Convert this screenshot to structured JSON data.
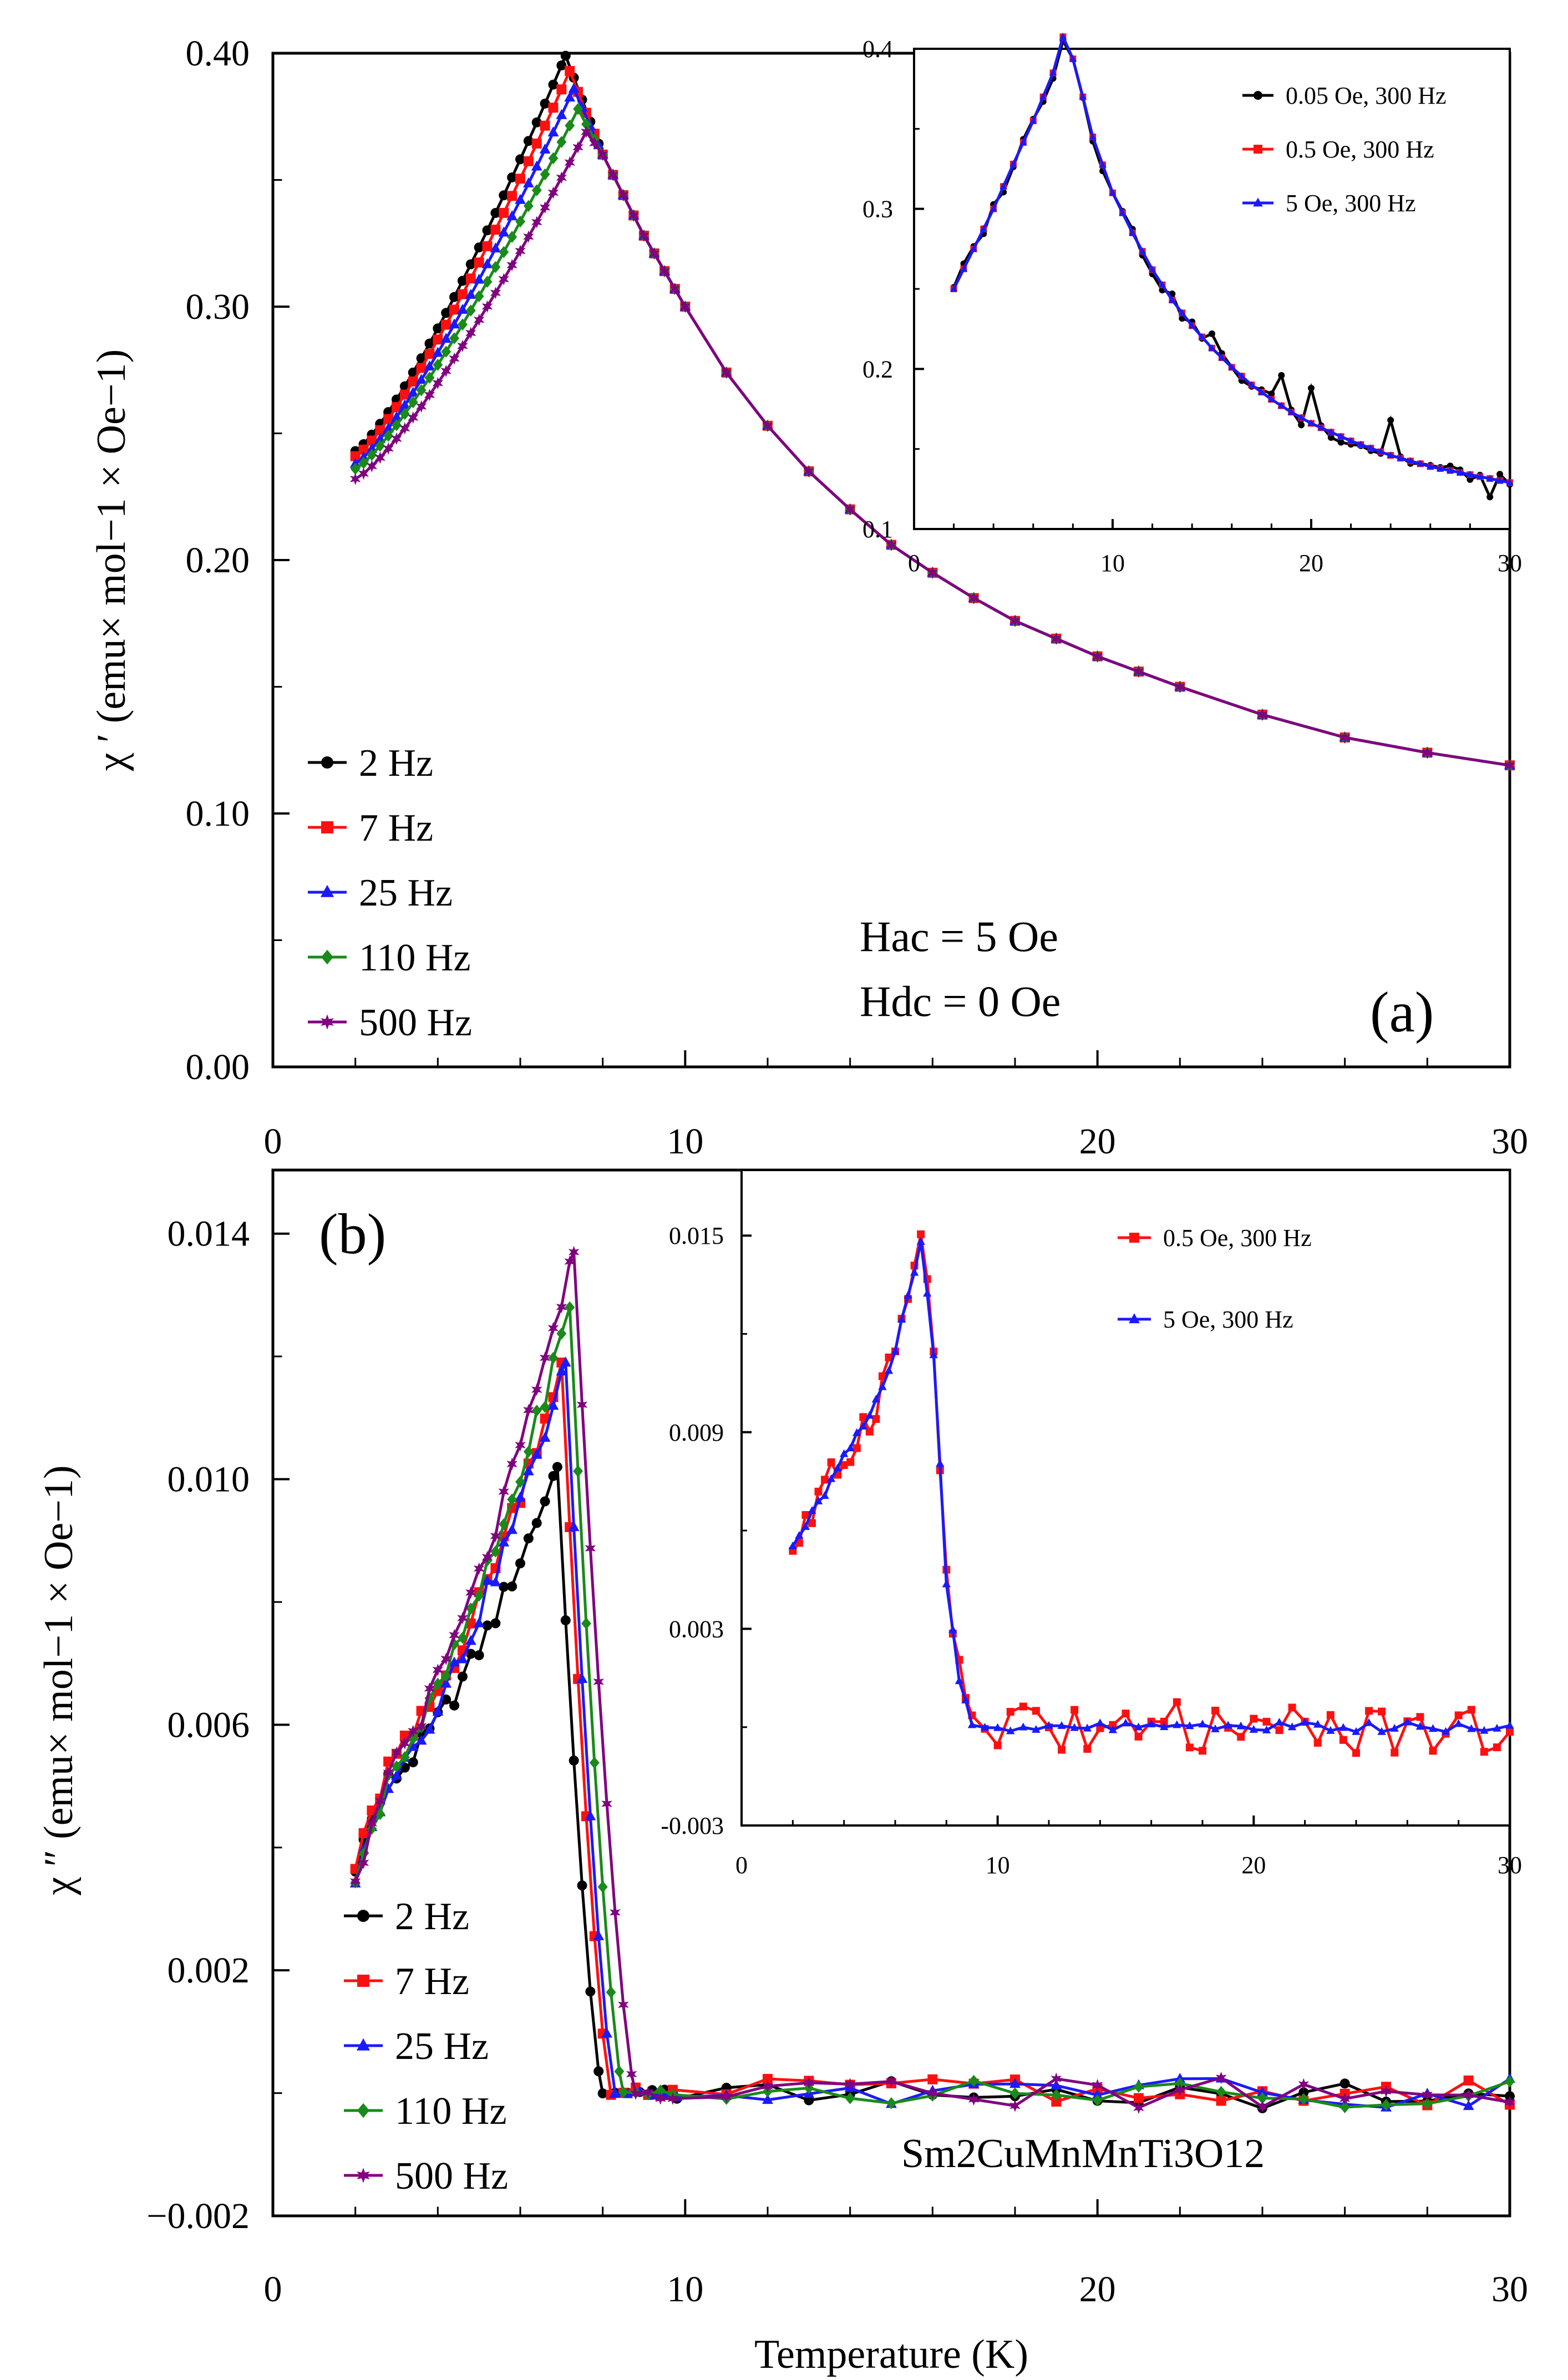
{
  "colors": {
    "2 Hz": "#000000",
    "7 Hz": "#ff1010",
    "25 Hz": "#1a1aff",
    "110 Hz": "#1a8a1a",
    "500 Hz": "#800080",
    "0.05 Oe, 300 Hz": "#000000",
    "0.5 Oe, 300 Hz": "#ff1010",
    "5 Oe, 300 Hz": "#1a1aff"
  },
  "markers": {
    "2 Hz": "circle",
    "7 Hz": "square",
    "25 Hz": "triangle",
    "110 Hz": "diamond",
    "500 Hz": "star",
    "0.05 Oe, 300 Hz": "circle",
    "0.5 Oe, 300 Hz": "square",
    "5 Oe, 300 Hz": "triangle"
  },
  "chart_data": [
    {
      "id": "a-main",
      "type": "line",
      "panel_label": "(a)",
      "ylabel": "χ ′ (emu× mol−1 × Oe−1)",
      "xlabel": "",
      "xlim": [
        0,
        30
      ],
      "ylim": [
        0.0,
        0.4
      ],
      "xticks": [
        0,
        10,
        20,
        30
      ],
      "yticks": [
        0.0,
        0.1,
        0.2,
        0.3,
        0.4
      ],
      "ytick_labels": [
        "0.00",
        "0.10",
        "0.20",
        "0.30",
        "0.40"
      ],
      "annotations": [
        "Hac = 5 Oe",
        "Hdc = 0 Oe"
      ],
      "legend": [
        "2 Hz",
        "7 Hz",
        "25 Hz",
        "110 Hz",
        "500 Hz"
      ],
      "series": [
        {
          "name": "2 Hz",
          "peak": [
            7.1,
            0.399
          ],
          "start": [
            2.0,
            0.243
          ]
        },
        {
          "name": "7 Hz",
          "peak": [
            7.2,
            0.393
          ],
          "start": [
            2.0,
            0.241
          ]
        },
        {
          "name": "25 Hz",
          "peak": [
            7.3,
            0.386
          ],
          "start": [
            2.0,
            0.238
          ]
        },
        {
          "name": "110 Hz",
          "peak": [
            7.4,
            0.378
          ],
          "start": [
            2.0,
            0.236
          ]
        },
        {
          "name": "500 Hz",
          "peak": [
            7.6,
            0.369
          ],
          "start": [
            2.0,
            0.232
          ]
        }
      ],
      "shared_tail": [
        [
          8.0,
          0.36
        ],
        [
          9.0,
          0.328
        ],
        [
          10.0,
          0.3
        ],
        [
          11.0,
          0.274
        ],
        [
          12.0,
          0.253
        ],
        [
          13.0,
          0.235
        ],
        [
          14.0,
          0.22
        ],
        [
          15.0,
          0.206
        ],
        [
          16.0,
          0.195
        ],
        [
          17.0,
          0.185
        ],
        [
          18.0,
          0.176
        ],
        [
          19.0,
          0.169
        ],
        [
          20.0,
          0.162
        ],
        [
          21.0,
          0.156
        ],
        [
          22.0,
          0.15
        ],
        [
          24.0,
          0.139
        ],
        [
          26.0,
          0.13
        ],
        [
          28.0,
          0.124
        ],
        [
          30.0,
          0.119
        ]
      ]
    },
    {
      "id": "a-inset",
      "type": "line",
      "xlim": [
        0,
        30
      ],
      "ylim": [
        0.1,
        0.4
      ],
      "xticks": [
        0,
        10,
        20,
        30
      ],
      "yticks": [
        0.1,
        0.2,
        0.3,
        0.4
      ],
      "ytick_labels": [
        "0.1",
        "0.2",
        "0.3",
        "0.4"
      ],
      "legend": [
        "0.05 Oe, 300 Hz",
        "0.5 Oe, 300 Hz",
        "5 Oe, 300 Hz"
      ],
      "base_curve": [
        [
          2.0,
          0.25
        ],
        [
          3.0,
          0.275
        ],
        [
          4.0,
          0.3
        ],
        [
          5.0,
          0.328
        ],
        [
          6.0,
          0.355
        ],
        [
          7.0,
          0.385
        ],
        [
          7.6,
          0.412
        ],
        [
          8.3,
          0.38
        ],
        [
          9.0,
          0.345
        ],
        [
          10.0,
          0.31
        ],
        [
          11.0,
          0.285
        ],
        [
          12.0,
          0.262
        ],
        [
          13.0,
          0.243
        ],
        [
          14.0,
          0.227
        ],
        [
          15.0,
          0.213
        ],
        [
          16.0,
          0.201
        ],
        [
          17.0,
          0.19
        ],
        [
          18.0,
          0.181
        ],
        [
          19.0,
          0.173
        ],
        [
          20.0,
          0.166
        ],
        [
          22.0,
          0.155
        ],
        [
          24.0,
          0.146
        ],
        [
          26.0,
          0.139
        ],
        [
          28.0,
          0.134
        ],
        [
          30.0,
          0.129
        ]
      ],
      "noise_points_0_05Oe": [
        [
          10.0,
          0.31
        ],
        [
          15.0,
          0.222
        ],
        [
          18.5,
          0.196
        ],
        [
          19.5,
          0.165
        ],
        [
          20.0,
          0.188
        ],
        [
          24.0,
          0.168
        ],
        [
          29.0,
          0.12
        ]
      ]
    },
    {
      "id": "b-main",
      "type": "line",
      "panel_label": "(b)",
      "ylabel": "χ ″ (emu× mol−1 × Oe−1)",
      "xlabel": "Temperature (K)",
      "xlim": [
        0,
        30
      ],
      "ylim": [
        -0.002,
        0.015
      ],
      "xticks": [
        0,
        10,
        20,
        30
      ],
      "yticks": [
        -0.002,
        0.002,
        0.006,
        0.01,
        0.014
      ],
      "ytick_labels": [
        "−0.002",
        "0.002",
        "0.006",
        "0.010",
        "0.014"
      ],
      "compound": "Sm2CuMnMnTi3O12",
      "legend": [
        "2 Hz",
        "7 Hz",
        "25 Hz",
        "110 Hz",
        "500 Hz"
      ],
      "series": [
        {
          "name": "2 Hz",
          "start": [
            2.0,
            0.0038
          ],
          "peak": [
            6.9,
            0.0102
          ],
          "drop_end": 8.0
        },
        {
          "name": "7 Hz",
          "start": [
            2.0,
            0.0037
          ],
          "peak": [
            7.0,
            0.0119
          ],
          "drop_end": 8.2
        },
        {
          "name": "25 Hz",
          "start": [
            2.0,
            0.0035
          ],
          "peak": [
            7.1,
            0.0119
          ],
          "drop_end": 8.3
        },
        {
          "name": "110 Hz",
          "start": [
            2.0,
            0.0034
          ],
          "peak": [
            7.2,
            0.0128
          ],
          "drop_end": 8.5
        },
        {
          "name": "500 Hz",
          "start": [
            2.0,
            0.0033
          ],
          "peak": [
            7.3,
            0.0137
          ],
          "drop_end": 8.8
        }
      ],
      "baseline": 0.0
    },
    {
      "id": "b-inset",
      "type": "line",
      "xlim": [
        0,
        30
      ],
      "ylim": [
        -0.003,
        0.017
      ],
      "xticks": [
        0,
        10,
        20,
        30
      ],
      "yticks": [
        -0.003,
        0.003,
        0.009,
        0.015
      ],
      "ytick_labels": [
        "-0.003",
        "0.003",
        "0.009",
        "0.015"
      ],
      "legend": [
        "0.5 Oe, 300 Hz",
        "5 Oe, 300 Hz"
      ],
      "base_curve": [
        [
          2.0,
          0.0055
        ],
        [
          3.0,
          0.0068
        ],
        [
          4.0,
          0.0082
        ],
        [
          5.0,
          0.0095
        ],
        [
          6.0,
          0.0115
        ],
        [
          7.0,
          0.0148
        ],
        [
          7.5,
          0.0115
        ],
        [
          8.0,
          0.0045
        ],
        [
          8.5,
          0.0015
        ],
        [
          9.0,
          0.0
        ],
        [
          30.0,
          0.0
        ]
      ],
      "peak_0_5Oe": [
        7.0,
        0.0155
      ]
    }
  ]
}
